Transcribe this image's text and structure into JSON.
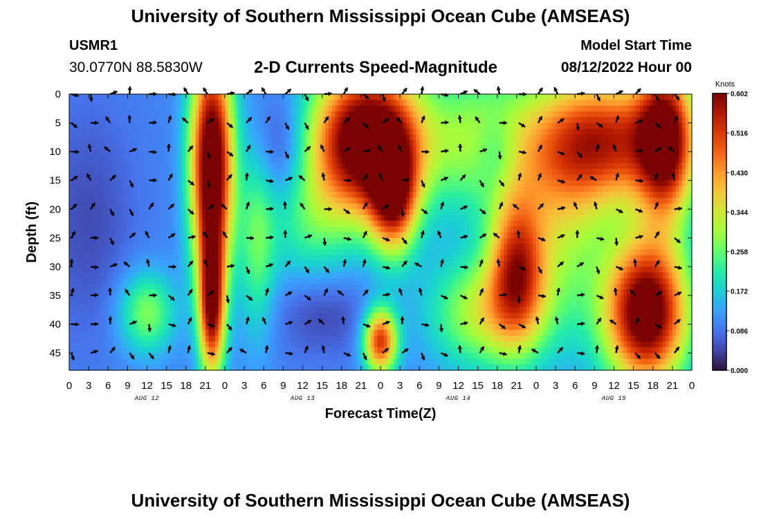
{
  "header": {
    "title": "University of Southern Mississippi Ocean Cube (AMSEAS)",
    "station": "USMR1",
    "coords": "30.0770N  88.5830W",
    "subtitle": "2-D Currents Speed-Magnitude",
    "start_label": "Model Start Time",
    "start_value": "08/12/2022 Hour 00",
    "footer_title": "University of Southern Mississippi Ocean Cube (AMSEAS)"
  },
  "colors": {
    "scale": [
      "#30123b",
      "#4145ab",
      "#4675ed",
      "#39a2fc",
      "#1bcfd4",
      "#24eca6",
      "#61fc6c",
      "#a4fc3b",
      "#d1e834",
      "#f3c63a",
      "#fe9b2d",
      "#f36315",
      "#d93806",
      "#b11901",
      "#7a0403"
    ]
  },
  "chart_data": {
    "type": "heatmap",
    "title": "2-D Currents Speed-Magnitude",
    "xlabel": "Forecast Time(Z)",
    "ylabel": "Depth (ft)",
    "colorbar_label": "Knots",
    "colorbar_ticks": [
      "0.602",
      "0.516",
      "0.430",
      "0.344",
      "0.258",
      "0.172",
      "0.086",
      "0.000"
    ],
    "colorbar_range": [
      0,
      0.602
    ],
    "x_hours_range": [
      0,
      96
    ],
    "x_tick_labels": [
      "0",
      "3",
      "6",
      "9",
      "12",
      "15",
      "18",
      "21",
      "0",
      "3",
      "6",
      "9",
      "12",
      "15",
      "18",
      "21",
      "0",
      "3",
      "6",
      "9",
      "12",
      "15",
      "18",
      "21",
      "0",
      "3",
      "6",
      "9",
      "12",
      "15",
      "18",
      "21",
      "0"
    ],
    "date_labels": [
      {
        "hour": 12,
        "label": "AUG 12"
      },
      {
        "hour": 36,
        "label": "AUG 13"
      },
      {
        "hour": 60,
        "label": "AUG 14"
      },
      {
        "hour": 84,
        "label": "AUG 15"
      }
    ],
    "depth_range_ft": [
      0,
      48
    ],
    "y_ticks": [
      0,
      5,
      10,
      15,
      20,
      25,
      30,
      35,
      40,
      45
    ],
    "arrow_hours": [
      0,
      3,
      6,
      9,
      12,
      15,
      18,
      21,
      24,
      27,
      30,
      33,
      36,
      39,
      42,
      45,
      48,
      51,
      54,
      57,
      60,
      63,
      66,
      69,
      72,
      75,
      78,
      81,
      84,
      87,
      90,
      93
    ],
    "arrow_depths_ft": [
      0,
      5,
      10,
      15,
      20,
      25,
      30,
      35,
      40,
      45
    ],
    "blobs": [
      {
        "hour": 22,
        "depth": 12,
        "sh": 2.3,
        "sd": 14,
        "amp": 0.6
      },
      {
        "hour": 22,
        "depth": 37,
        "sh": 1.4,
        "sd": 9,
        "amp": 0.45
      },
      {
        "hour": 46,
        "depth": 8,
        "sh": 6,
        "sd": 9,
        "amp": 0.62
      },
      {
        "hour": 50,
        "depth": 18,
        "sh": 2.5,
        "sd": 7,
        "amp": 0.38
      },
      {
        "hour": 48,
        "depth": 43,
        "sh": 1.8,
        "sd": 4,
        "amp": 0.42
      },
      {
        "hour": 69,
        "depth": 30,
        "sh": 3,
        "sd": 9,
        "amp": 0.36
      },
      {
        "hour": 83,
        "depth": 8,
        "sh": 8,
        "sd": 8,
        "amp": 0.42
      },
      {
        "hour": 92,
        "depth": 8,
        "sh": 3,
        "sd": 10,
        "amp": 0.42
      },
      {
        "hour": 89,
        "depth": 38,
        "sh": 4.5,
        "sd": 9,
        "amp": 0.58
      },
      {
        "hour": 64,
        "depth": 8,
        "sh": 6,
        "sd": 9,
        "amp": 0.2
      },
      {
        "hour": 64,
        "depth": 38,
        "sh": 6,
        "sd": 7,
        "amp": 0.22
      },
      {
        "hour": 12,
        "depth": 38,
        "sh": 3,
        "sd": 5,
        "amp": 0.18
      },
      {
        "hour": 37,
        "depth": 22,
        "sh": 5,
        "sd": 8,
        "amp": 0.12
      },
      {
        "hour": 76,
        "depth": 22,
        "sh": 5,
        "sd": 14,
        "amp": 0.18
      },
      {
        "hour": 29,
        "depth": 26,
        "sh": 2,
        "sd": 12,
        "amp": 0.14
      },
      {
        "hour": 3,
        "depth": 22,
        "sh": 5,
        "sd": 14,
        "amp": -0.05
      },
      {
        "hour": 33,
        "depth": 10,
        "sh": 3,
        "sd": 7,
        "amp": -0.09
      },
      {
        "hour": 39,
        "depth": 38,
        "sh": 5,
        "sd": 5,
        "amp": -0.06
      },
      {
        "hour": 66,
        "depth": 10,
        "sh": 2.5,
        "sd": 5,
        "amp": -0.1
      }
    ],
    "base_value": 0.1
  }
}
